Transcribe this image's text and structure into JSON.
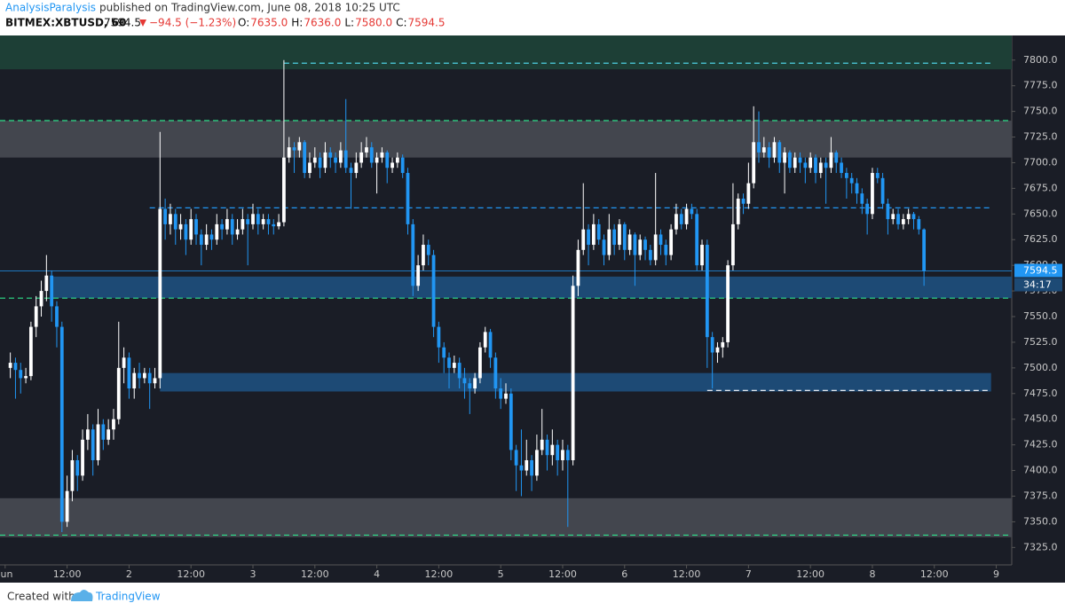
{
  "header": {
    "author": "AnalysisParalysis",
    "published": "published on TradingView.com, June 08, 2018 10:25 UTC",
    "symbol": "BITMEX:XBTUSD, 60",
    "last": "7594.5",
    "change": "−94.5 (−1.23%)",
    "ohlc": [
      {
        "key": "O:",
        "value": "7635.0"
      },
      {
        "key": "H:",
        "value": "7636.0"
      },
      {
        "key": "L:",
        "value": "7580.0"
      },
      {
        "key": "C:",
        "value": "7594.5"
      }
    ]
  },
  "chart_data": {
    "type": "candlestick",
    "up_color": "#ffffff",
    "down_color": "#2196f3",
    "countdown": "34:17",
    "xlim": [
      -2,
      194
    ],
    "xticks": [
      {
        "value": -1,
        "label": "Jun"
      },
      {
        "value": 11,
        "label": "12:00"
      },
      {
        "value": 23,
        "label": "2"
      },
      {
        "value": 35,
        "label": "12:00"
      },
      {
        "value": 47,
        "label": "3"
      },
      {
        "value": 59,
        "label": "12:00"
      },
      {
        "value": 71,
        "label": "4"
      },
      {
        "value": 83,
        "label": "12:00"
      },
      {
        "value": 95,
        "label": "5"
      },
      {
        "value": 107,
        "label": "12:00"
      },
      {
        "value": 119,
        "label": "6"
      },
      {
        "value": 131,
        "label": "12:00"
      },
      {
        "value": 143,
        "label": "7"
      },
      {
        "value": 155,
        "label": "12:00"
      },
      {
        "value": 167,
        "label": "8"
      },
      {
        "value": 179,
        "label": "12:00"
      },
      {
        "value": 191,
        "label": "9"
      }
    ],
    "ylim": [
      7308,
      7824
    ],
    "yticks": [
      {
        "value": 7325,
        "label": "7325.0"
      },
      {
        "value": 7350,
        "label": "7350.0"
      },
      {
        "value": 7375,
        "label": "7375.0"
      },
      {
        "value": 7400,
        "label": "7400.0"
      },
      {
        "value": 7425,
        "label": "7425.0"
      },
      {
        "value": 7450,
        "label": "7450.0"
      },
      {
        "value": 7475,
        "label": "7475.0"
      },
      {
        "value": 7500,
        "label": "7500.0"
      },
      {
        "value": 7525,
        "label": "7525.0"
      },
      {
        "value": 7550,
        "label": "7550.0"
      },
      {
        "value": 7575,
        "label": "7575.0"
      },
      {
        "value": 7600,
        "label": "7600.0"
      },
      {
        "value": 7625,
        "label": "7625.0"
      },
      {
        "value": 7650,
        "label": "7650.0"
      },
      {
        "value": 7675,
        "label": "7675.0"
      },
      {
        "value": 7700,
        "label": "7700.0"
      },
      {
        "value": 7725,
        "label": "7725.0"
      },
      {
        "value": 7750,
        "label": "7750.0"
      },
      {
        "value": 7775,
        "label": "7775.0"
      },
      {
        "value": 7800,
        "label": "7800.0"
      }
    ],
    "zones": [
      {
        "low": 7791,
        "high": 7824,
        "color": "#1d3f36"
      },
      {
        "low": 7705,
        "high": 7741,
        "color": "#43464e"
      },
      {
        "low": 7568,
        "high": 7589,
        "color": "#1d4a75",
        "start": 8
      },
      {
        "low": 7477,
        "high": 7495,
        "color": "#1d4a75",
        "start": 29,
        "end": 190
      },
      {
        "low": 7335,
        "high": 7373,
        "color": "#43464e"
      }
    ],
    "levels": [
      {
        "value": 7797,
        "color": "#4dd0e1",
        "start": 53,
        "end": 190
      },
      {
        "value": 7741,
        "color": "#2ee08a"
      },
      {
        "value": 7656,
        "color": "#2196f3",
        "start": 27,
        "end": 190
      },
      {
        "value": 7568,
        "color": "#2ee08a"
      },
      {
        "value": 7478,
        "color": "#ffffff",
        "start": 135,
        "end": 190
      },
      {
        "value": 7337,
        "color": "#2ee08a"
      }
    ],
    "candles": [
      [
        7500,
        7515,
        7490,
        7505
      ],
      [
        7505,
        7510,
        7470,
        7498
      ],
      [
        7498,
        7505,
        7475,
        7490
      ],
      [
        7490,
        7500,
        7485,
        7492
      ],
      [
        7492,
        7545,
        7488,
        7540
      ],
      [
        7540,
        7570,
        7530,
        7560
      ],
      [
        7560,
        7585,
        7550,
        7575
      ],
      [
        7575,
        7610,
        7565,
        7590
      ],
      [
        7590,
        7595,
        7545,
        7560
      ],
      [
        7560,
        7565,
        7520,
        7540
      ],
      [
        7540,
        7545,
        7340,
        7350
      ],
      [
        7350,
        7395,
        7345,
        7380
      ],
      [
        7380,
        7420,
        7370,
        7410
      ],
      [
        7410,
        7415,
        7380,
        7395
      ],
      [
        7395,
        7440,
        7390,
        7430
      ],
      [
        7430,
        7455,
        7420,
        7440
      ],
      [
        7440,
        7445,
        7395,
        7410
      ],
      [
        7410,
        7460,
        7405,
        7445
      ],
      [
        7445,
        7450,
        7420,
        7430
      ],
      [
        7430,
        7450,
        7425,
        7440
      ],
      [
        7440,
        7460,
        7430,
        7450
      ],
      [
        7450,
        7545,
        7445,
        7500
      ],
      [
        7500,
        7520,
        7485,
        7510
      ],
      [
        7510,
        7515,
        7470,
        7480
      ],
      [
        7480,
        7500,
        7470,
        7495
      ],
      [
        7495,
        7505,
        7480,
        7490
      ],
      [
        7490,
        7500,
        7485,
        7495
      ],
      [
        7495,
        7500,
        7460,
        7485
      ],
      [
        7485,
        7500,
        7480,
        7490
      ],
      [
        7490,
        7730,
        7480,
        7655
      ],
      [
        7655,
        7665,
        7625,
        7640
      ],
      [
        7640,
        7660,
        7630,
        7650
      ],
      [
        7650,
        7655,
        7620,
        7635
      ],
      [
        7635,
        7650,
        7625,
        7640
      ],
      [
        7640,
        7645,
        7610,
        7625
      ],
      [
        7625,
        7655,
        7620,
        7645
      ],
      [
        7645,
        7650,
        7620,
        7630
      ],
      [
        7630,
        7635,
        7600,
        7620
      ],
      [
        7620,
        7640,
        7615,
        7630
      ],
      [
        7630,
        7635,
        7615,
        7625
      ],
      [
        7625,
        7650,
        7620,
        7640
      ],
      [
        7640,
        7645,
        7625,
        7635
      ],
      [
        7635,
        7655,
        7630,
        7645
      ],
      [
        7645,
        7650,
        7620,
        7630
      ],
      [
        7630,
        7645,
        7625,
        7635
      ],
      [
        7635,
        7655,
        7630,
        7645
      ],
      [
        7645,
        7650,
        7600,
        7640
      ],
      [
        7640,
        7660,
        7635,
        7650
      ],
      [
        7650,
        7655,
        7630,
        7640
      ],
      [
        7640,
        7650,
        7635,
        7645
      ],
      [
        7645,
        7650,
        7630,
        7640
      ],
      [
        7640,
        7645,
        7630,
        7638
      ],
      [
        7638,
        7650,
        7635,
        7642
      ],
      [
        7642,
        7800,
        7638,
        7705
      ],
      [
        7705,
        7725,
        7700,
        7715
      ],
      [
        7715,
        7720,
        7690,
        7712
      ],
      [
        7712,
        7725,
        7705,
        7720
      ],
      [
        7720,
        7722,
        7685,
        7690
      ],
      [
        7690,
        7710,
        7685,
        7700
      ],
      [
        7700,
        7715,
        7695,
        7705
      ],
      [
        7705,
        7710,
        7685,
        7695
      ],
      [
        7695,
        7720,
        7690,
        7710
      ],
      [
        7710,
        7715,
        7695,
        7705
      ],
      [
        7705,
        7710,
        7690,
        7700
      ],
      [
        7700,
        7720,
        7695,
        7712
      ],
      [
        7712,
        7762,
        7690,
        7695
      ],
      [
        7695,
        7700,
        7655,
        7690
      ],
      [
        7690,
        7710,
        7685,
        7700
      ],
      [
        7700,
        7720,
        7695,
        7710
      ],
      [
        7710,
        7725,
        7705,
        7715
      ],
      [
        7715,
        7720,
        7695,
        7700
      ],
      [
        7700,
        7710,
        7670,
        7705
      ],
      [
        7705,
        7715,
        7700,
        7710
      ],
      [
        7710,
        7712,
        7680,
        7695
      ],
      [
        7695,
        7705,
        7690,
        7700
      ],
      [
        7700,
        7710,
        7695,
        7705
      ],
      [
        7705,
        7708,
        7685,
        7690
      ],
      [
        7690,
        7695,
        7630,
        7640
      ],
      [
        7640,
        7645,
        7570,
        7580
      ],
      [
        7580,
        7610,
        7575,
        7600
      ],
      [
        7600,
        7630,
        7595,
        7620
      ],
      [
        7620,
        7625,
        7600,
        7610
      ],
      [
        7610,
        7615,
        7530,
        7540
      ],
      [
        7540,
        7545,
        7505,
        7520
      ],
      [
        7520,
        7525,
        7495,
        7510
      ],
      [
        7510,
        7515,
        7480,
        7500
      ],
      [
        7500,
        7512,
        7495,
        7505
      ],
      [
        7505,
        7510,
        7480,
        7490
      ],
      [
        7490,
        7500,
        7470,
        7485
      ],
      [
        7485,
        7490,
        7455,
        7480
      ],
      [
        7480,
        7495,
        7475,
        7490
      ],
      [
        7490,
        7525,
        7485,
        7520
      ],
      [
        7520,
        7540,
        7515,
        7535
      ],
      [
        7535,
        7538,
        7500,
        7510
      ],
      [
        7510,
        7515,
        7470,
        7480
      ],
      [
        7480,
        7490,
        7460,
        7470
      ],
      [
        7470,
        7485,
        7465,
        7475
      ],
      [
        7475,
        7480,
        7410,
        7420
      ],
      [
        7420,
        7425,
        7380,
        7405
      ],
      [
        7405,
        7440,
        7375,
        7400
      ],
      [
        7400,
        7430,
        7395,
        7410
      ],
      [
        7410,
        7415,
        7380,
        7395
      ],
      [
        7395,
        7435,
        7390,
        7420
      ],
      [
        7420,
        7460,
        7415,
        7430
      ],
      [
        7430,
        7435,
        7400,
        7415
      ],
      [
        7415,
        7440,
        7405,
        7425
      ],
      [
        7425,
        7430,
        7395,
        7410
      ],
      [
        7410,
        7430,
        7400,
        7420
      ],
      [
        7420,
        7425,
        7345,
        7410
      ],
      [
        7410,
        7590,
        7405,
        7580
      ],
      [
        7580,
        7625,
        7570,
        7615
      ],
      [
        7615,
        7680,
        7610,
        7635
      ],
      [
        7635,
        7640,
        7600,
        7620
      ],
      [
        7620,
        7650,
        7615,
        7640
      ],
      [
        7640,
        7645,
        7620,
        7625
      ],
      [
        7625,
        7630,
        7600,
        7610
      ],
      [
        7610,
        7650,
        7605,
        7635
      ],
      [
        7635,
        7640,
        7610,
        7620
      ],
      [
        7620,
        7645,
        7615,
        7640
      ],
      [
        7640,
        7642,
        7605,
        7615
      ],
      [
        7615,
        7635,
        7610,
        7630
      ],
      [
        7630,
        7632,
        7580,
        7610
      ],
      [
        7610,
        7630,
        7605,
        7625
      ],
      [
        7625,
        7628,
        7605,
        7615
      ],
      [
        7615,
        7620,
        7600,
        7605
      ],
      [
        7605,
        7690,
        7600,
        7630
      ],
      [
        7630,
        7635,
        7610,
        7620
      ],
      [
        7620,
        7625,
        7600,
        7610
      ],
      [
        7610,
        7640,
        7605,
        7635
      ],
      [
        7635,
        7660,
        7630,
        7650
      ],
      [
        7650,
        7655,
        7635,
        7640
      ],
      [
        7640,
        7660,
        7635,
        7655
      ],
      [
        7655,
        7660,
        7645,
        7650
      ],
      [
        7650,
        7655,
        7595,
        7600
      ],
      [
        7600,
        7625,
        7595,
        7620
      ],
      [
        7620,
        7625,
        7500,
        7530
      ],
      [
        7530,
        7535,
        7480,
        7515
      ],
      [
        7515,
        7525,
        7505,
        7520
      ],
      [
        7520,
        7530,
        7510,
        7525
      ],
      [
        7525,
        7605,
        7520,
        7600
      ],
      [
        7600,
        7680,
        7595,
        7640
      ],
      [
        7640,
        7670,
        7635,
        7665
      ],
      [
        7665,
        7670,
        7650,
        7660
      ],
      [
        7660,
        7700,
        7655,
        7680
      ],
      [
        7680,
        7755,
        7675,
        7720
      ],
      [
        7720,
        7750,
        7700,
        7710
      ],
      [
        7710,
        7725,
        7705,
        7715
      ],
      [
        7715,
        7720,
        7695,
        7705
      ],
      [
        7705,
        7725,
        7700,
        7720
      ],
      [
        7720,
        7722,
        7690,
        7700
      ],
      [
        7700,
        7715,
        7670,
        7710
      ],
      [
        7710,
        7712,
        7690,
        7695
      ],
      [
        7695,
        7710,
        7690,
        7705
      ],
      [
        7705,
        7710,
        7690,
        7700
      ],
      [
        7700,
        7705,
        7680,
        7695
      ],
      [
        7695,
        7710,
        7690,
        7705
      ],
      [
        7705,
        7708,
        7680,
        7690
      ],
      [
        7690,
        7705,
        7685,
        7700
      ],
      [
        7700,
        7705,
        7660,
        7695
      ],
      [
        7695,
        7725,
        7690,
        7710
      ],
      [
        7710,
        7712,
        7690,
        7700
      ],
      [
        7700,
        7705,
        7685,
        7690
      ],
      [
        7690,
        7695,
        7665,
        7685
      ],
      [
        7685,
        7690,
        7670,
        7680
      ],
      [
        7680,
        7685,
        7660,
        7670
      ],
      [
        7670,
        7675,
        7650,
        7660
      ],
      [
        7660,
        7665,
        7630,
        7650
      ],
      [
        7650,
        7695,
        7645,
        7690
      ],
      [
        7690,
        7695,
        7680,
        7685
      ],
      [
        7685,
        7690,
        7655,
        7660
      ],
      [
        7660,
        7665,
        7630,
        7645
      ],
      [
        7645,
        7655,
        7640,
        7650
      ],
      [
        7650,
        7655,
        7635,
        7640
      ],
      [
        7640,
        7650,
        7635,
        7645
      ],
      [
        7645,
        7655,
        7640,
        7650
      ],
      [
        7650,
        7652,
        7635,
        7645
      ],
      [
        7645,
        7648,
        7630,
        7635
      ],
      [
        7635,
        7636,
        7580,
        7594.5
      ]
    ]
  },
  "footer": {
    "text": "Created with",
    "brand": "TradingView"
  }
}
